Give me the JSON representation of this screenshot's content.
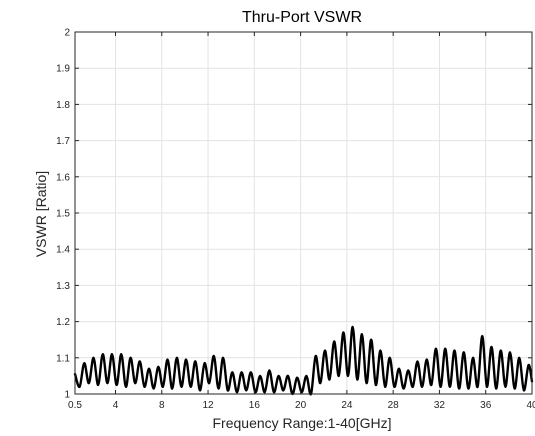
{
  "chart_data": {
    "type": "line",
    "title": "Thru-Port VSWR",
    "xlabel": "Frequency Range:1-40[GHz]",
    "ylabel": "VSWR [Ratio]",
    "xlim": [
      0.5,
      40
    ],
    "ylim": [
      1,
      2
    ],
    "xticks": [
      0.5,
      4,
      8,
      12,
      16,
      20,
      24,
      28,
      32,
      36,
      40
    ],
    "xtick_labels": [
      "0.5",
      "4",
      "8",
      "12",
      "16",
      "20",
      "24",
      "28",
      "32",
      "36",
      "40"
    ],
    "yticks": [
      1,
      1.1,
      1.2,
      1.3,
      1.4,
      1.5,
      1.6,
      1.7,
      1.8,
      1.9,
      2
    ],
    "ytick_labels": [
      "1",
      "1.1",
      "1.2",
      "1.3",
      "1.4",
      "1.5",
      "1.6",
      "1.7",
      "1.8",
      "1.9",
      "2"
    ],
    "grid": true,
    "line_color": "#000000",
    "series": [
      {
        "x": [
          0.5,
          0.9,
          1.3,
          1.7,
          2.1,
          2.5,
          2.9,
          3.3,
          3.7,
          4.1,
          4.5,
          4.9,
          5.3,
          5.7,
          6.1,
          6.5,
          6.9,
          7.3,
          7.7,
          8.1,
          8.5,
          8.9,
          9.3,
          9.7,
          10.1,
          10.5,
          10.9,
          11.3,
          11.7,
          12.1,
          12.5,
          12.9,
          13.3,
          13.7,
          14.1,
          14.5,
          14.9,
          15.3,
          15.7,
          16.1,
          16.5,
          16.9,
          17.3,
          17.7,
          18.1,
          18.5,
          18.9,
          19.3,
          19.7,
          20.1,
          20.5,
          20.9,
          21.3,
          21.7,
          22.1,
          22.5,
          22.9,
          23.3,
          23.7,
          24.1,
          24.5,
          24.9,
          25.3,
          25.7,
          26.1,
          26.5,
          26.9,
          27.3,
          27.7,
          28.1,
          28.5,
          28.9,
          29.3,
          29.7,
          30.1,
          30.5,
          30.9,
          31.3,
          31.7,
          32.1,
          32.5,
          32.9,
          33.3,
          33.7,
          34.1,
          34.5,
          34.9,
          35.3,
          35.7,
          36.1,
          36.5,
          36.9,
          37.3,
          37.7,
          38.1,
          38.5,
          38.9,
          39.3,
          39.7,
          40
        ],
        "y": [
          1.055,
          1.02,
          1.085,
          1.03,
          1.1,
          1.025,
          1.11,
          1.03,
          1.11,
          1.025,
          1.11,
          1.02,
          1.1,
          1.03,
          1.09,
          1.02,
          1.07,
          1.015,
          1.075,
          1.02,
          1.095,
          1.015,
          1.1,
          1.02,
          1.095,
          1.02,
          1.09,
          1.01,
          1.085,
          1.03,
          1.105,
          1.015,
          1.1,
          1.01,
          1.06,
          1.005,
          1.06,
          1.01,
          1.06,
          1.005,
          1.05,
          1.005,
          1.065,
          1.005,
          1.05,
          1.01,
          1.05,
          1.0,
          1.045,
          1.005,
          1.05,
          1.0,
          1.105,
          1.03,
          1.12,
          1.04,
          1.145,
          1.05,
          1.17,
          1.05,
          1.185,
          1.04,
          1.165,
          1.03,
          1.15,
          1.025,
          1.12,
          1.02,
          1.1,
          1.02,
          1.07,
          1.015,
          1.065,
          1.02,
          1.09,
          1.02,
          1.095,
          1.025,
          1.125,
          1.02,
          1.125,
          1.02,
          1.12,
          1.015,
          1.115,
          1.015,
          1.1,
          1.02,
          1.16,
          1.02,
          1.13,
          1.015,
          1.12,
          1.02,
          1.115,
          1.015,
          1.1,
          1.01,
          1.08,
          1.035
        ]
      }
    ]
  }
}
